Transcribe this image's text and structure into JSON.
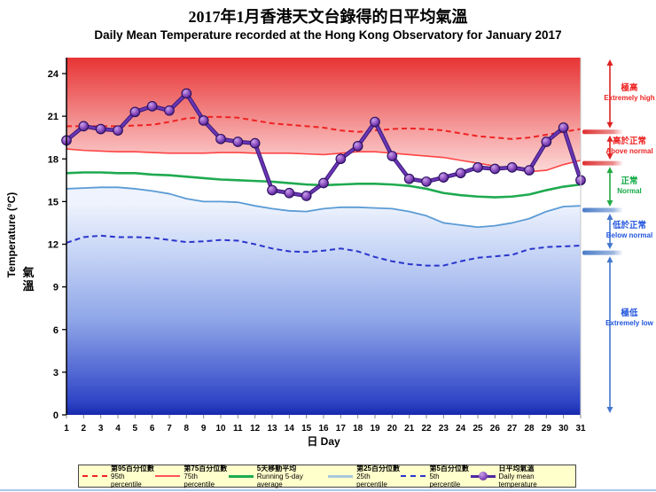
{
  "title": {
    "zh": "2017年1月香港天文台錄得的日平均氣溫",
    "en": "Daily Mean Temperature recorded at the Hong Kong Observatory for January 2017"
  },
  "axes": {
    "y_label_zh": "氣溫",
    "y_label_en": "Temperature (°C)",
    "x_label": "日 Day",
    "y_ticks": [
      0,
      3,
      6,
      9,
      12,
      15,
      18,
      21,
      24
    ]
  },
  "chart_data": {
    "type": "line",
    "title": "Daily Mean Temperature recorded at the Hong Kong Observatory for January 2017",
    "xlabel": "日 Day",
    "ylabel": "氣溫 Temperature (°C)",
    "xlim": [
      1,
      31
    ],
    "ylim": [
      0,
      25.1
    ],
    "grid": false,
    "legend_position": "bottom",
    "x": [
      1,
      2,
      3,
      4,
      5,
      6,
      7,
      8,
      9,
      10,
      11,
      12,
      13,
      14,
      15,
      16,
      17,
      18,
      19,
      20,
      21,
      22,
      23,
      24,
      25,
      26,
      27,
      28,
      29,
      30,
      31
    ],
    "series": [
      {
        "name": "95th percentile",
        "name_zh": "第95百分位數",
        "style": "dashed",
        "color": "#ee2222",
        "width": 2,
        "values": [
          20.3,
          20.3,
          20.3,
          20.3,
          20.35,
          20.4,
          20.6,
          20.85,
          20.95,
          20.95,
          20.9,
          20.7,
          20.5,
          20.4,
          20.3,
          20.2,
          20.0,
          19.9,
          20.0,
          20.1,
          20.15,
          20.1,
          20.0,
          19.8,
          19.6,
          19.5,
          19.4,
          19.5,
          19.7,
          19.9,
          20.1
        ]
      },
      {
        "name": "75th percentile",
        "name_zh": "第75百分位數",
        "style": "solid",
        "color": "#ff4444",
        "width": 1.6,
        "values": [
          18.7,
          18.6,
          18.55,
          18.5,
          18.5,
          18.45,
          18.4,
          18.4,
          18.4,
          18.45,
          18.45,
          18.4,
          18.4,
          18.4,
          18.35,
          18.3,
          18.4,
          18.5,
          18.5,
          18.4,
          18.3,
          18.2,
          18.1,
          17.9,
          17.7,
          17.5,
          17.3,
          17.1,
          17.2,
          17.6,
          17.9
        ]
      },
      {
        "name": "Running 5-day average",
        "name_zh": "5天移動平均",
        "style": "solid",
        "color": "#1faa50",
        "width": 2.6,
        "values": [
          17.0,
          17.05,
          17.05,
          17.0,
          17.0,
          16.9,
          16.85,
          16.75,
          16.65,
          16.55,
          16.5,
          16.45,
          16.4,
          16.3,
          16.2,
          16.15,
          16.2,
          16.25,
          16.25,
          16.2,
          16.1,
          15.9,
          15.6,
          15.45,
          15.35,
          15.3,
          15.35,
          15.5,
          15.8,
          16.05,
          16.2
        ]
      },
      {
        "name": "25th percentile",
        "name_zh": "第25百分位數",
        "style": "solid",
        "color": "#5b9bd5",
        "width": 1.8,
        "values": [
          15.9,
          15.95,
          16.0,
          16.0,
          15.9,
          15.75,
          15.55,
          15.2,
          15.0,
          15.0,
          14.95,
          14.7,
          14.5,
          14.35,
          14.3,
          14.5,
          14.6,
          14.6,
          14.55,
          14.5,
          14.3,
          14.0,
          13.5,
          13.35,
          13.2,
          13.3,
          13.5,
          13.8,
          14.3,
          14.65,
          14.7
        ]
      },
      {
        "name": "5th percentile",
        "name_zh": "第5百分位數",
        "style": "dashed",
        "color": "#2a35cc",
        "width": 2,
        "values": [
          12.1,
          12.5,
          12.6,
          12.5,
          12.5,
          12.45,
          12.3,
          12.15,
          12.2,
          12.3,
          12.25,
          12.0,
          11.7,
          11.5,
          11.45,
          11.55,
          11.7,
          11.5,
          11.1,
          10.8,
          10.6,
          10.5,
          10.5,
          10.8,
          11.05,
          11.15,
          11.25,
          11.65,
          11.8,
          11.85,
          11.9
        ]
      },
      {
        "name": "Daily mean temperature",
        "name_zh": "日平均氣溫",
        "style": "solid-markers",
        "color": "#5128a0",
        "width": 3.4,
        "values": [
          19.3,
          20.3,
          20.1,
          20.0,
          21.3,
          21.7,
          21.4,
          22.6,
          20.7,
          19.4,
          19.2,
          19.1,
          15.8,
          15.6,
          15.4,
          16.3,
          18.0,
          18.9,
          20.6,
          18.2,
          16.6,
          16.4,
          16.7,
          17.0,
          17.4,
          17.3,
          17.4,
          17.2,
          19.2,
          20.2,
          16.5
        ]
      }
    ],
    "zone_boundaries_degC": [
      19.9,
      17.7,
      14.4,
      11.4
    ]
  },
  "zones": [
    {
      "zh": "極高",
      "en": "Extremely high",
      "color": "#ee2222",
      "bar_color": "#dd3030"
    },
    {
      "zh": "高於正常",
      "en": "Above normal",
      "color": "#ee2222",
      "bar_color": "#dd3030"
    },
    {
      "zh": "正常",
      "en": "Normal",
      "color": "#11aa44",
      "bar_color": ""
    },
    {
      "zh": "低於正常",
      "en": "Below normal",
      "color": "#2255dd",
      "bar_color": "#4a7cc7"
    },
    {
      "zh": "極低",
      "en": "Extremely low",
      "color": "#2255dd",
      "bar_color": "#4a7cc7"
    }
  ],
  "legend": {
    "items": [
      {
        "zh": "第95百分位數",
        "en": "95th percentile",
        "sample": "dash95"
      },
      {
        "zh": "第75百分位數",
        "en": "75th percentile",
        "sample": "sol75"
      },
      {
        "zh": "5天移動平均",
        "en": "Running 5-day average",
        "sample": "green"
      },
      {
        "zh": "第25百分位數",
        "en": "25th percentile",
        "sample": "p25"
      },
      {
        "zh": "第5百分位數",
        "en": "5th percentile",
        "sample": "dash5"
      },
      {
        "zh": "日平均氣溫",
        "en": "Daily mean temperature",
        "sample": "mean"
      }
    ]
  },
  "colors": {
    "hot_top": "#e83434",
    "cold_bottom": "#1828ac",
    "legend_bg": "#ffffcc"
  }
}
